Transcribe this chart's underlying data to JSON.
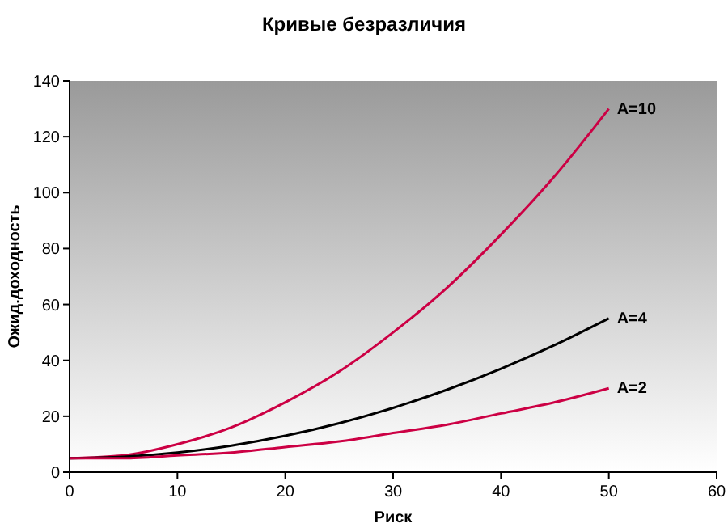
{
  "chart_data": {
    "type": "line",
    "title": "Кривые безразличия",
    "xlabel": "Риск",
    "ylabel": "Ожид.доходность",
    "x": [
      0,
      5,
      10,
      15,
      20,
      25,
      30,
      35,
      40,
      45,
      50
    ],
    "series": [
      {
        "name": "A=10",
        "color": "#cc0044",
        "values": [
          5,
          6,
          10,
          16,
          25,
          36,
          50,
          66,
          85,
          106,
          130
        ]
      },
      {
        "name": "A=4",
        "color": "#000000",
        "values": [
          5,
          5.5,
          7,
          9.5,
          13,
          17.5,
          23,
          29.5,
          37,
          45.5,
          55
        ]
      },
      {
        "name": "A=2",
        "color": "#cc0044",
        "values": [
          5,
          5,
          6,
          7,
          9,
          11,
          14,
          17,
          21,
          25,
          30
        ]
      }
    ],
    "xlim": [
      0,
      60
    ],
    "xticks": [
      0,
      10,
      20,
      30,
      40,
      50,
      60
    ],
    "ylim": [
      0,
      140
    ],
    "yticks": [
      0,
      20,
      40,
      60,
      80,
      100,
      120,
      140
    ],
    "grid": false,
    "marker": "none",
    "line_style": "solid"
  }
}
